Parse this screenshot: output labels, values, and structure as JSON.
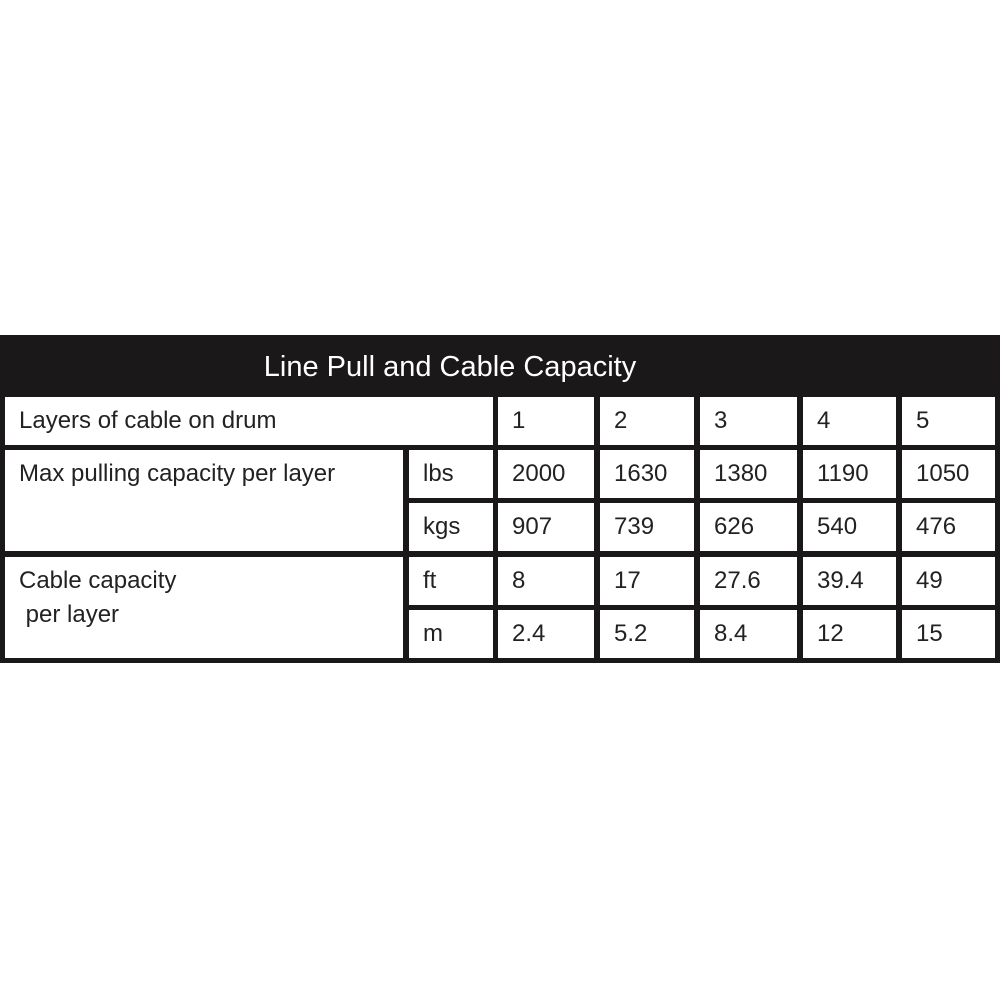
{
  "title": "Line Pull and Cable Capacity",
  "header_row": {
    "label": "Layers of cable on drum",
    "values": [
      "1",
      "2",
      "3",
      "4",
      "5"
    ]
  },
  "rows": [
    {
      "label": "Max pulling capacity per layer",
      "units": [
        {
          "unit": "lbs",
          "values": [
            "2000",
            "1630",
            "1380",
            "1190",
            "1050"
          ]
        },
        {
          "unit": "kgs",
          "values": [
            "907",
            "739",
            "626",
            "540",
            "476"
          ]
        }
      ]
    },
    {
      "label": "Cable capacity\n per layer",
      "units": [
        {
          "unit": "ft",
          "values": [
            "8",
            "17",
            "27.6",
            "39.4",
            "49"
          ]
        },
        {
          "unit": "m",
          "values": [
            "2.4",
            "5.2",
            "8.4",
            "12",
            "15"
          ]
        }
      ]
    }
  ],
  "colors": {
    "band": "#1a1818",
    "cell": "#ffffff",
    "text": "#222222"
  }
}
